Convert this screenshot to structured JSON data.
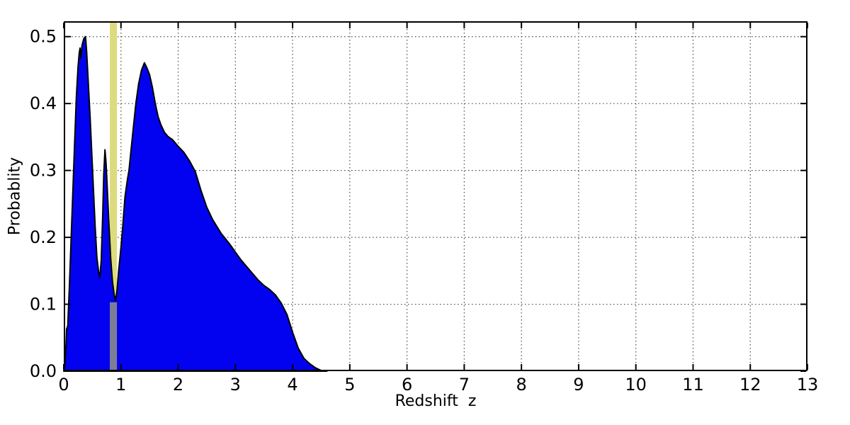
{
  "chart_data": {
    "type": "area",
    "title": "",
    "xlabel": "Redshift  z",
    "ylabel": "Probablity",
    "xlim": [
      0,
      13
    ],
    "ylim": [
      0,
      0.523
    ],
    "grid": true,
    "legend": "none",
    "xticks": {
      "values": [
        0,
        1,
        2,
        3,
        4,
        5,
        6,
        7,
        8,
        9,
        10,
        11,
        12,
        13
      ],
      "labels": [
        "0",
        "1",
        "2",
        "3",
        "4",
        "5",
        "6",
        "7",
        "8",
        "9",
        "10",
        "11",
        "12",
        "13"
      ]
    },
    "yticks": {
      "values": [
        0.0,
        0.1,
        0.2,
        0.3,
        0.4,
        0.5
      ],
      "labels": [
        "0.0",
        "0.1",
        "0.2",
        "0.3",
        "0.4",
        "0.5"
      ]
    },
    "gridlines": {
      "x": [
        1,
        2,
        3,
        4,
        5,
        6,
        7,
        8,
        9,
        10,
        11,
        12
      ],
      "y": [
        0.1,
        0.2,
        0.3,
        0.4,
        0.5
      ]
    },
    "series": [
      {
        "name": "redshift-pdf",
        "fill_color": "#0202f0",
        "edge_color": "#000000",
        "x": [
          0.0,
          0.02,
          0.04,
          0.05,
          0.06,
          0.07,
          0.08,
          0.1,
          0.13,
          0.16,
          0.19,
          0.22,
          0.25,
          0.27,
          0.285,
          0.3,
          0.32,
          0.35,
          0.38,
          0.4,
          0.43,
          0.46,
          0.49,
          0.52,
          0.55,
          0.58,
          0.61,
          0.63,
          0.655,
          0.68,
          0.7,
          0.72,
          0.74,
          0.76,
          0.79,
          0.82,
          0.85,
          0.88,
          0.905,
          0.93,
          0.96,
          1.0,
          1.03,
          1.07,
          1.11,
          1.14,
          1.2,
          1.26,
          1.31,
          1.36,
          1.41,
          1.46,
          1.5,
          1.55,
          1.6,
          1.65,
          1.7,
          1.76,
          1.82,
          1.9,
          2.0,
          2.1,
          2.2,
          2.3,
          2.4,
          2.5,
          2.6,
          2.75,
          2.9,
          3.0,
          3.1,
          3.25,
          3.4,
          3.5,
          3.6,
          3.7,
          3.8,
          3.9,
          4.0,
          4.1,
          4.2,
          4.3,
          4.4,
          4.5,
          4.6
        ],
        "y": [
          0.0,
          0.01,
          0.04,
          0.063,
          0.065,
          0.068,
          0.09,
          0.13,
          0.2,
          0.27,
          0.34,
          0.41,
          0.455,
          0.475,
          0.483,
          0.468,
          0.487,
          0.497,
          0.5,
          0.478,
          0.43,
          0.38,
          0.325,
          0.27,
          0.215,
          0.17,
          0.148,
          0.14,
          0.165,
          0.23,
          0.295,
          0.331,
          0.31,
          0.275,
          0.22,
          0.17,
          0.135,
          0.115,
          0.105,
          0.12,
          0.15,
          0.185,
          0.215,
          0.26,
          0.285,
          0.3,
          0.35,
          0.4,
          0.43,
          0.45,
          0.461,
          0.452,
          0.443,
          0.424,
          0.4,
          0.38,
          0.368,
          0.357,
          0.351,
          0.346,
          0.336,
          0.327,
          0.314,
          0.298,
          0.27,
          0.245,
          0.227,
          0.206,
          0.19,
          0.178,
          0.166,
          0.151,
          0.136,
          0.128,
          0.122,
          0.114,
          0.102,
          0.085,
          0.058,
          0.034,
          0.019,
          0.011,
          0.005,
          0.001,
          0.0
        ]
      }
    ],
    "annotations": [
      {
        "kind": "vspan",
        "name": "reference-redshift-band",
        "x0": 0.805,
        "x1": 0.93,
        "y0": 0.0,
        "y1": 0.523,
        "color": "#dcdc7e"
      },
      {
        "kind": "vspan",
        "name": "marker-segment",
        "x0": 0.805,
        "x1": 0.93,
        "y0": 0.0,
        "y1": 0.103,
        "color": "#7d7d96"
      }
    ],
    "peaks": [
      {
        "x": 0.38,
        "y": 0.5
      },
      {
        "x": 0.72,
        "y": 0.331
      },
      {
        "x": 1.41,
        "y": 0.461
      }
    ],
    "style": {
      "background": "#ffffff",
      "spine_color": "#000000",
      "spine_width": 2,
      "grid_color": "#4a4a4a",
      "grid_dash": "1.5 3.5",
      "tick_length": 8,
      "tick_width": 2,
      "tick_font_px": 24,
      "label_font_px": 22
    }
  }
}
